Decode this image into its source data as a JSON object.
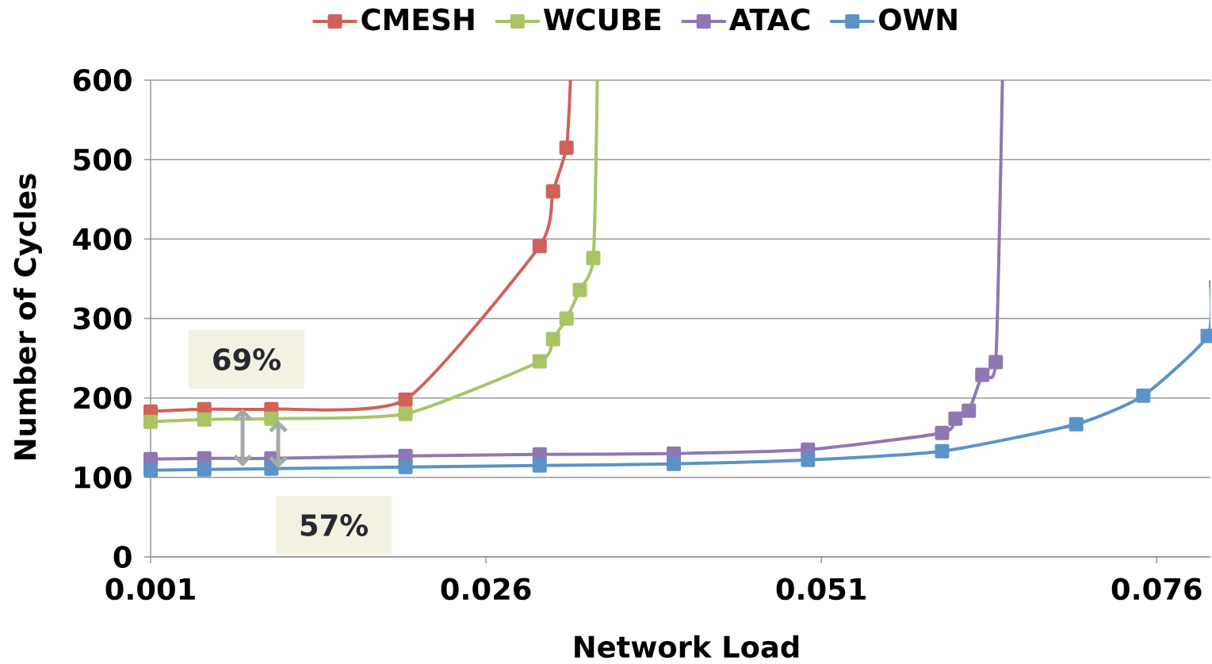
{
  "chart_data": {
    "type": "line",
    "xlabel": "Network Load",
    "ylabel": "Number of Cycles",
    "xlim": [
      0.001,
      0.08
    ],
    "xticks": [
      0.001,
      0.026,
      0.051,
      0.076
    ],
    "ylim": [
      0,
      600
    ],
    "yticks": [
      0,
      100,
      200,
      300,
      400,
      500,
      600
    ],
    "grid": "y",
    "legend": "top",
    "marker": "square",
    "line_style": "solid",
    "annotations": [
      "69%",
      "57%"
    ],
    "series": [
      {
        "name": "CMESH",
        "color": "#d0625a",
        "x": [
          0.001,
          0.005,
          0.01,
          0.02,
          0.03,
          0.031,
          0.032,
          0.0323
        ],
        "values": [
          183,
          186,
          186,
          198,
          391,
          460,
          515,
          600
        ]
      },
      {
        "name": "WCUBE",
        "color": "#a8c465",
        "x": [
          0.001,
          0.005,
          0.01,
          0.02,
          0.03,
          0.031,
          0.032,
          0.033,
          0.034,
          0.0343
        ],
        "values": [
          170,
          173,
          174,
          180,
          246,
          274,
          300,
          336,
          376,
          600
        ]
      },
      {
        "name": "ATAC",
        "color": "#8f77b3",
        "x": [
          0.001,
          0.005,
          0.01,
          0.02,
          0.03,
          0.04,
          0.05,
          0.06,
          0.061,
          0.062,
          0.063,
          0.064,
          0.0645
        ],
        "values": [
          123,
          124,
          124,
          127,
          129,
          130,
          135,
          156,
          174,
          184,
          229,
          245,
          600
        ]
      },
      {
        "name": "OWN",
        "color": "#5b93c7",
        "x": [
          0.001,
          0.005,
          0.01,
          0.02,
          0.03,
          0.04,
          0.05,
          0.06,
          0.07,
          0.075,
          0.0798,
          0.08
        ],
        "values": [
          109,
          110,
          111,
          113,
          115,
          117,
          122,
          133,
          167,
          203,
          278,
          348
        ]
      }
    ]
  }
}
